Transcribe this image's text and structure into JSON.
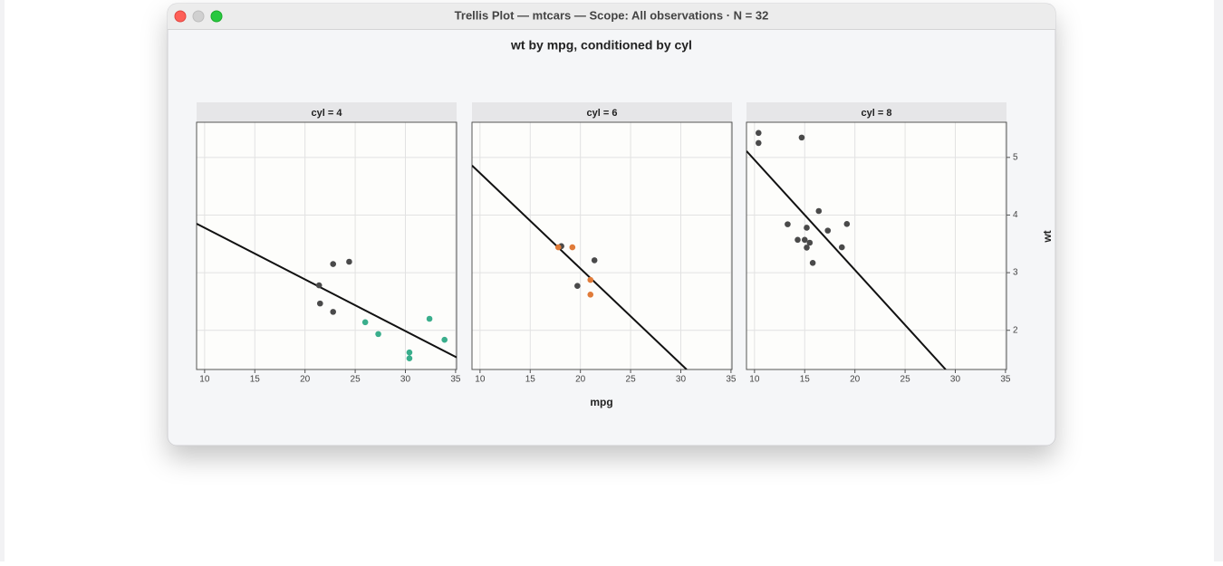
{
  "window": {
    "title": "Trellis Plot — mtcars — Scope: All observations · N = 32"
  },
  "title": "wt by mpg, conditioned by cyl",
  "xlabel": "mpg",
  "ylabel": "wt",
  "chart_data": [
    {
      "type": "scatter",
      "title": "cyl = 4",
      "xlim": [
        9.2,
        35.1
      ],
      "ylim": [
        1.32,
        5.61
      ],
      "xticks": [
        10,
        15,
        20,
        25,
        30,
        35
      ],
      "yticks": [
        2,
        3,
        4,
        5
      ],
      "grid": true,
      "series": [
        {
          "color": "#4a4a4a",
          "x": [
            22.8,
            24.4,
            22.8,
            21.5,
            21.4
          ],
          "y": [
            2.32,
            3.19,
            3.15,
            2.465,
            2.78
          ]
        },
        {
          "color": "#3aae8c",
          "x": [
            32.4,
            30.4,
            33.9,
            27.3,
            26,
            30.4
          ],
          "y": [
            2.2,
            1.615,
            1.835,
            1.935,
            2.14,
            1.513
          ]
        }
      ],
      "lines": [
        {
          "color": "#111111",
          "x": [
            9.2,
            35.1
          ],
          "y": [
            3.85,
            1.53
          ]
        }
      ]
    },
    {
      "type": "scatter",
      "title": "cyl = 6",
      "xlim": [
        9.2,
        35.1
      ],
      "ylim": [
        1.32,
        5.61
      ],
      "xticks": [
        10,
        15,
        20,
        25,
        30,
        35
      ],
      "yticks": [
        2,
        3,
        4,
        5
      ],
      "grid": true,
      "series": [
        {
          "color": "#4a4a4a",
          "x": [
            18.1,
            19.7,
            21.4
          ],
          "y": [
            3.46,
            2.77,
            3.215
          ]
        },
        {
          "color": "#e07b39",
          "x": [
            21,
            21,
            19.2,
            17.8
          ],
          "y": [
            2.62,
            2.875,
            3.44,
            3.44
          ]
        }
      ],
      "lines": [
        {
          "color": "#111111",
          "x": [
            9.2,
            30.58
          ],
          "y": [
            4.86,
            1.32
          ]
        }
      ]
    },
    {
      "type": "scatter",
      "title": "cyl = 8",
      "xlim": [
        9.2,
        35.1
      ],
      "ylim": [
        1.32,
        5.61
      ],
      "xticks": [
        10,
        15,
        20,
        25,
        30,
        35
      ],
      "yticks": [
        2,
        3,
        4,
        5
      ],
      "grid": true,
      "yaxis_side": "right",
      "series": [
        {
          "color": "#4a4a4a",
          "x": [
            18.7,
            14.3,
            16.4,
            17.3,
            15.2,
            10.4,
            10.4,
            14.7,
            15.5,
            15.2,
            13.3,
            19.2,
            15.8,
            15
          ],
          "y": [
            3.44,
            3.57,
            4.07,
            3.73,
            3.78,
            5.25,
            5.424,
            5.345,
            3.52,
            3.435,
            3.84,
            3.845,
            3.17,
            3.57
          ]
        }
      ],
      "lines": [
        {
          "color": "#111111",
          "x": [
            9.2,
            29.04
          ],
          "y": [
            5.11,
            1.32
          ]
        }
      ]
    }
  ]
}
